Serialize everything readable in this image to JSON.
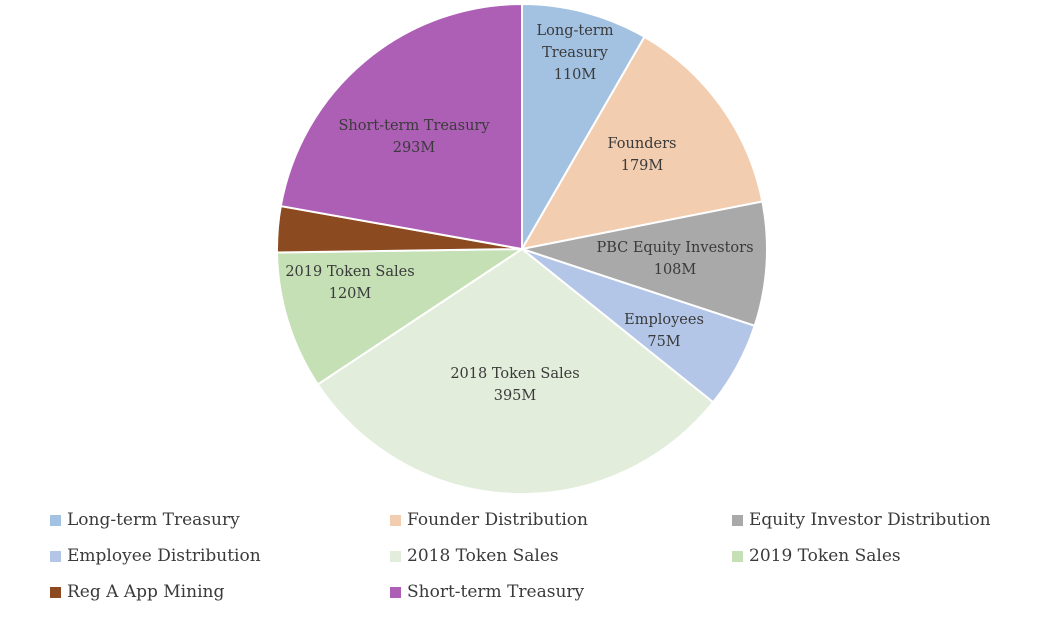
{
  "chart_data": {
    "type": "pie",
    "start_angle_deg": 0,
    "direction": "clockwise",
    "slices": [
      {
        "label": "Long-term Treasury",
        "label_lines": [
          "Long-term",
          "Treasury",
          "110M"
        ],
        "value": 110,
        "color": "#a3c1e1"
      },
      {
        "label": "Founders",
        "label_lines": [
          "Founders",
          "179M"
        ],
        "value": 179,
        "color": "#f2cdb0"
      },
      {
        "label": "PBC Equity Investors",
        "label_lines": [
          "PBC Equity Investors",
          "108M"
        ],
        "value": 108,
        "color": "#a9a9a9"
      },
      {
        "label": "Employees",
        "label_lines": [
          "Employees",
          "75M"
        ],
        "value": 75,
        "color": "#b4c6e7"
      },
      {
        "label": "2018 Token Sales",
        "label_lines": [
          "2018 Token Sales",
          "395M"
        ],
        "value": 395,
        "color": "#e3eddb"
      },
      {
        "label": "2019 Token Sales",
        "label_lines": [
          "2019 Token Sales",
          "120M"
        ],
        "value": 120,
        "color": "#c5e0b5"
      },
      {
        "label": "Reg A App Mining",
        "label_lines": [],
        "value": 40,
        "color": "#8b4a1f"
      },
      {
        "label": "Short-term Treasury",
        "label_lines": [
          "Short-term Treasury",
          "293M"
        ],
        "value": 293,
        "color": "#ad5fb6"
      }
    ],
    "legend": [
      {
        "label": "Long-term Treasury",
        "color": "#a3c1e1"
      },
      {
        "label": "Founder Distribution",
        "color": "#f2cdb0"
      },
      {
        "label": "Equity Investor Distribution",
        "color": "#a9a9a9"
      },
      {
        "label": "Employee Distribution",
        "color": "#b4c6e7"
      },
      {
        "label": "2018 Token Sales",
        "color": "#e3eddb"
      },
      {
        "label": "2019 Token Sales",
        "color": "#c5e0b5"
      },
      {
        "label": "Reg A App Mining",
        "color": "#8b4a1f"
      },
      {
        "label": "Short-term Treasury",
        "color": "#ad5fb6"
      }
    ],
    "legend_position": "bottom"
  }
}
